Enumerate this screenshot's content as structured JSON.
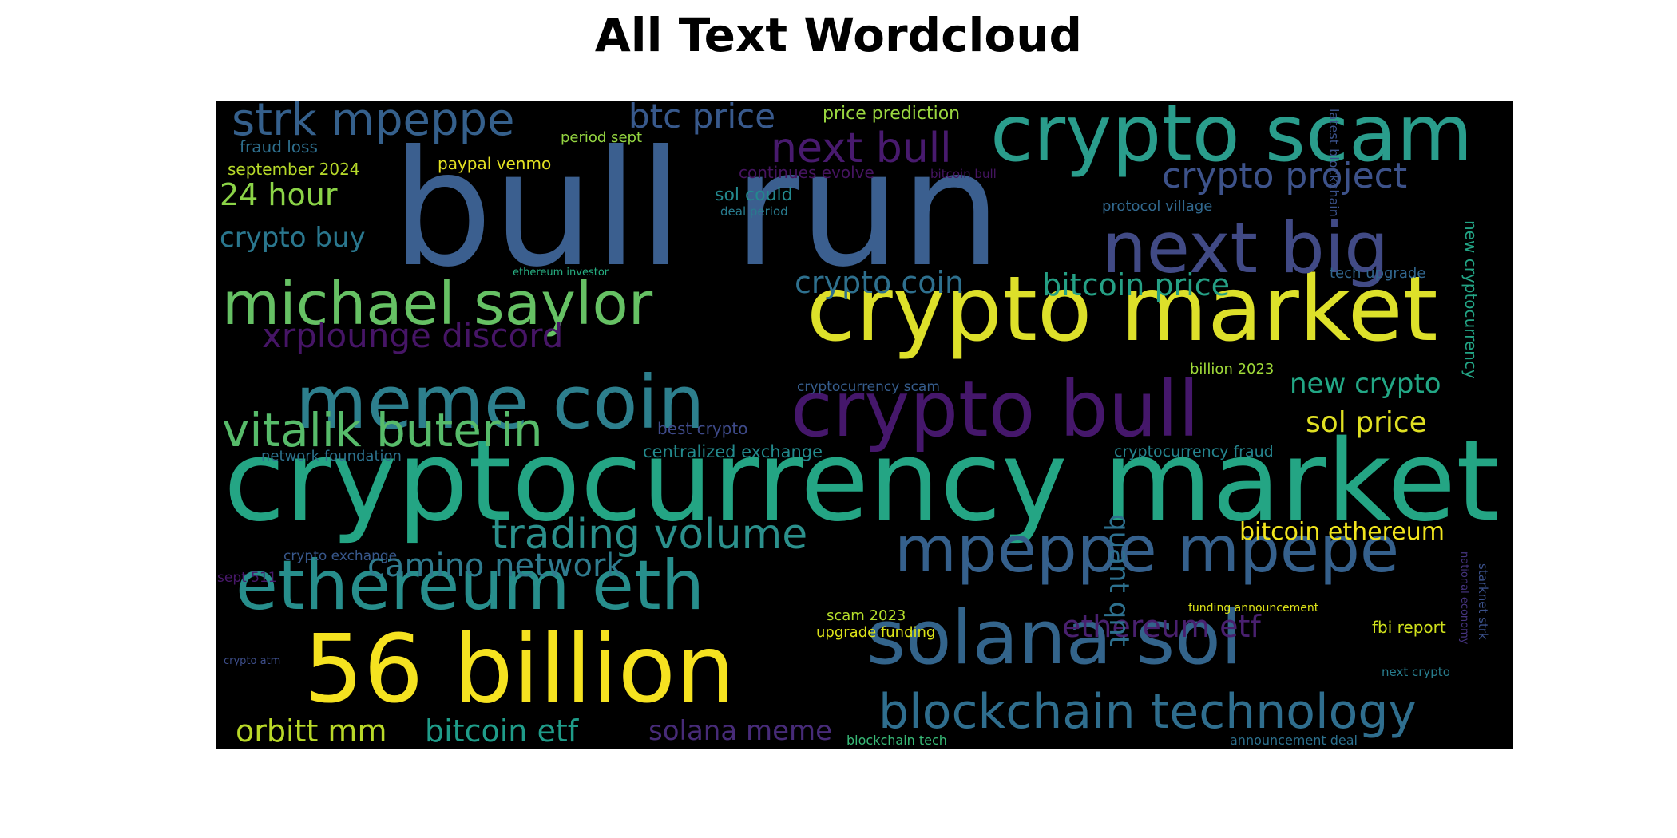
{
  "title": "All Text Wordcloud",
  "chart_data": {
    "type": "wordcloud",
    "title": "All Text Wordcloud",
    "background": "#000000",
    "colormap": "viridis",
    "words": [
      {
        "text": "bull run",
        "color": "#3b5f8f"
      },
      {
        "text": "cryptocurrency market",
        "color": "#24a584"
      },
      {
        "text": "crypto market",
        "color": "#dde02a"
      },
      {
        "text": "crypto scam",
        "color": "#2a9d8c"
      },
      {
        "text": "56 billion",
        "color": "#f5e220"
      },
      {
        "text": "meme coin",
        "color": "#2d7f8d"
      },
      {
        "text": "crypto bull",
        "color": "#45176b"
      },
      {
        "text": "next big",
        "color": "#414a85"
      },
      {
        "text": "solana sol",
        "color": "#33648b"
      },
      {
        "text": "mpeppe mpepe",
        "color": "#35608c"
      },
      {
        "text": "ethereum eth",
        "color": "#278e8c"
      },
      {
        "text": "michael saylor",
        "color": "#66c164"
      },
      {
        "text": "blockchain technology",
        "color": "#2f6e8e"
      },
      {
        "text": "vitalik buterin",
        "color": "#57bb6a"
      },
      {
        "text": "strk mpeppe",
        "color": "#35608c"
      },
      {
        "text": "trading volume",
        "color": "#2b908c"
      },
      {
        "text": "next bull",
        "color": "#481a6e"
      },
      {
        "text": "crypto project",
        "color": "#3d528a"
      },
      {
        "text": "btc price",
        "color": "#38598c"
      },
      {
        "text": "crypto coin",
        "color": "#2e708e"
      },
      {
        "text": "bitcoin price",
        "color": "#25a085"
      },
      {
        "text": "xrplounge discord",
        "color": "#461566"
      },
      {
        "text": "orbitt mm",
        "color": "#b9d928"
      },
      {
        "text": "bitcoin etf",
        "color": "#1f9c89"
      },
      {
        "text": "solana meme",
        "color": "#472b78"
      },
      {
        "text": "camino network",
        "color": "#2f7b8e"
      },
      {
        "text": "ethereum etf",
        "color": "#49206f"
      },
      {
        "text": "quant qnt",
        "color": "#2d708e"
      },
      {
        "text": "new crypto",
        "color": "#22a785"
      },
      {
        "text": "sol price",
        "color": "#e0e022"
      },
      {
        "text": "24 hour",
        "color": "#8bd347"
      },
      {
        "text": "crypto buy",
        "color": "#2a778e"
      },
      {
        "text": "bitcoin ethereum",
        "color": "#f1e51d"
      },
      {
        "text": "price prediction",
        "color": "#9ad740"
      },
      {
        "text": "fraud loss",
        "color": "#2e6f8e"
      },
      {
        "text": "period sept",
        "color": "#94d541"
      },
      {
        "text": "september 2024",
        "color": "#b6d929"
      },
      {
        "text": "paypal venmo",
        "color": "#e3e222"
      },
      {
        "text": "continues evolve",
        "color": "#45145f"
      },
      {
        "text": "bitcoin bull",
        "color": "#451562"
      },
      {
        "text": "sol could",
        "color": "#23888e"
      },
      {
        "text": "deal period",
        "color": "#287b8e"
      },
      {
        "text": "protocol village",
        "color": "#31688e"
      },
      {
        "text": "latest blockchain",
        "color": "#3b528b"
      },
      {
        "text": "new cryptocurrency",
        "color": "#23a485"
      },
      {
        "text": "tech upgrade",
        "color": "#31668e"
      },
      {
        "text": "ethereum investor",
        "color": "#26ad81"
      },
      {
        "text": "cryptocurrency scam",
        "color": "#365d8d"
      },
      {
        "text": "billion 2023",
        "color": "#a0da39"
      },
      {
        "text": "best crypto",
        "color": "#3e4a89"
      },
      {
        "text": "centralized exchange",
        "color": "#238a8d"
      },
      {
        "text": "network foundation",
        "color": "#2c728e"
      },
      {
        "text": "cryptocurrency fraud",
        "color": "#25848e"
      },
      {
        "text": "crypto exchange",
        "color": "#38588c"
      },
      {
        "text": "sept 511",
        "color": "#48186a"
      },
      {
        "text": "funding announcement",
        "color": "#dde318"
      },
      {
        "text": "scam 2023",
        "color": "#b5de2b"
      },
      {
        "text": "upgrade funding",
        "color": "#dde318"
      },
      {
        "text": "fbi report",
        "color": "#d0e11c"
      },
      {
        "text": "national economy",
        "color": "#463480"
      },
      {
        "text": "starknet strk",
        "color": "#3b518b"
      },
      {
        "text": "crypto atm",
        "color": "#3d4e8a"
      },
      {
        "text": "next crypto",
        "color": "#287d8e"
      },
      {
        "text": "blockchain tech",
        "color": "#38b977"
      },
      {
        "text": "announcement deal",
        "color": "#2d718e"
      }
    ]
  }
}
